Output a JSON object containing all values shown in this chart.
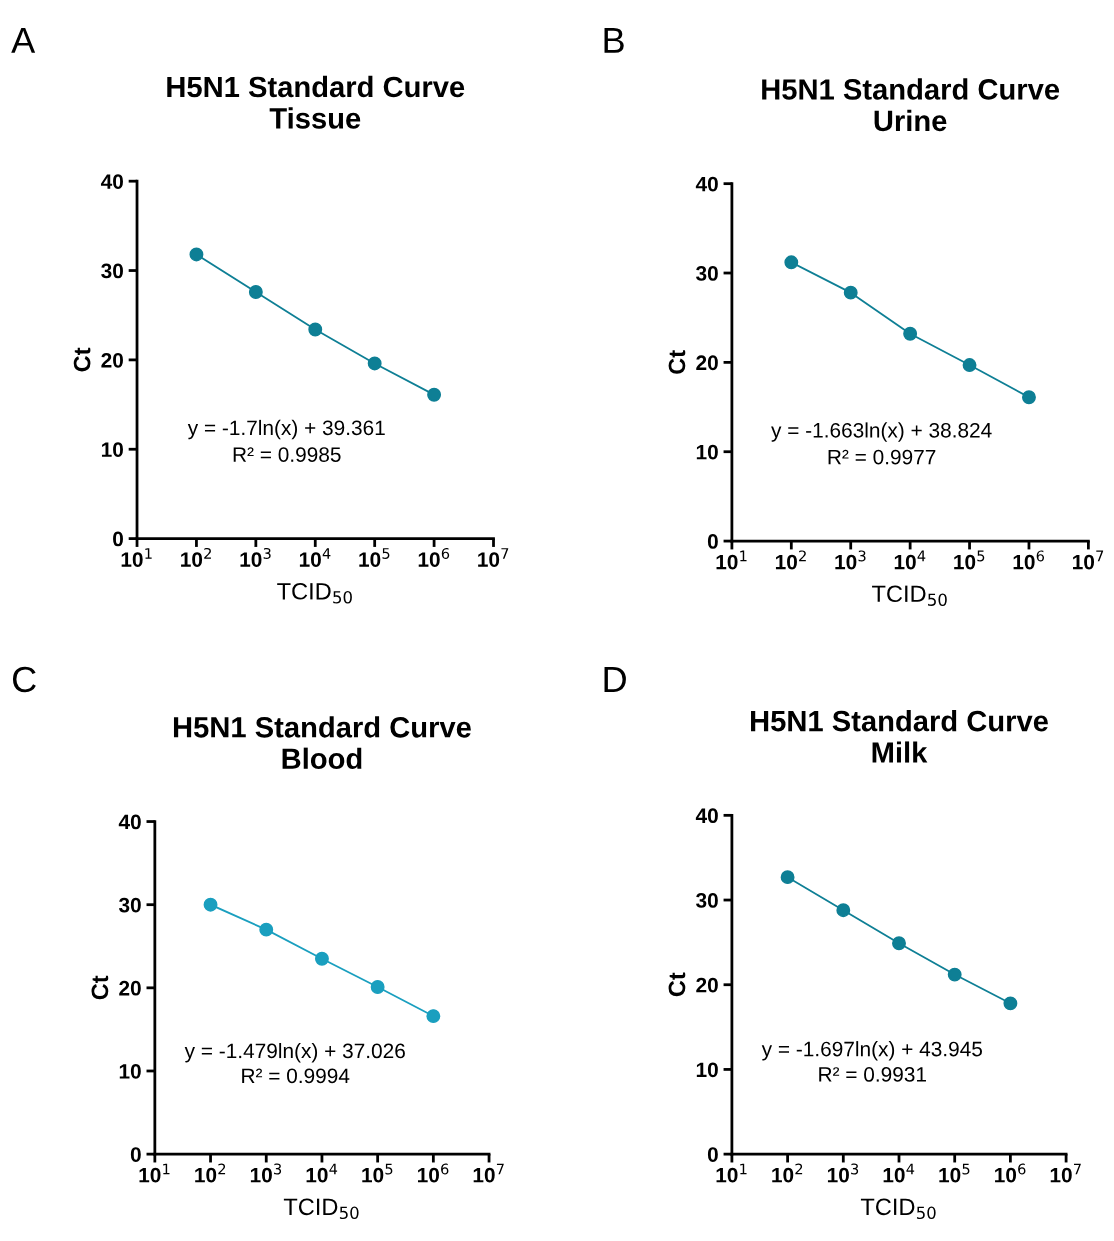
{
  "chart_data": [
    {
      "type": "line",
      "title": "H5N1 Standard Curve\nTissue",
      "xlabel": "TCID$_{50}$",
      "ylabel": "Ct",
      "x": [
        100,
        1000,
        10000,
        100000,
        1000000
      ],
      "series": [
        {
          "color": "#0e7f95",
          "values": [
            31.8,
            27.6,
            23.4,
            19.6,
            16.1
          ]
        }
      ],
      "log": "x",
      "xlim": [
        10,
        10000000
      ],
      "xticks": [
        {
          "value": 10,
          "label": "10$^{1}$"
        },
        {
          "value": 100,
          "label": "10$^{2}$"
        },
        {
          "value": 1000,
          "label": "10$^{3}$"
        },
        {
          "value": 10000,
          "label": "10$^{4}$"
        },
        {
          "value": 100000,
          "label": "10$^{5}$"
        },
        {
          "value": 1000000,
          "label": "10$^{6}$"
        },
        {
          "value": 10000000,
          "label": "10$^{7}$"
        }
      ],
      "ylim": [
        0,
        40
      ],
      "yticks": [
        0,
        10,
        20,
        30,
        40
      ],
      "grid": false,
      "legend": false,
      "marker": "circle",
      "line_style": "solid",
      "annotations": [
        "A",
        "y = -1.7ln(x) + 39.361",
        "R² = 0.9985"
      ]
    },
    {
      "type": "line",
      "title": "H5N1 Standard Curve\nUrine",
      "xlabel": "TCID$_{50}$",
      "ylabel": "Ct",
      "x": [
        100,
        1000,
        10000,
        100000,
        1000000
      ],
      "series": [
        {
          "color": "#0e7f95",
          "values": [
            31.2,
            27.8,
            23.2,
            19.7,
            16.1
          ]
        }
      ],
      "log": "x",
      "xlim": [
        10,
        10000000
      ],
      "xticks": [
        {
          "value": 10,
          "label": "10$^{1}$"
        },
        {
          "value": 100,
          "label": "10$^{2}$"
        },
        {
          "value": 1000,
          "label": "10$^{3}$"
        },
        {
          "value": 10000,
          "label": "10$^{4}$"
        },
        {
          "value": 100000,
          "label": "10$^{5}$"
        },
        {
          "value": 1000000,
          "label": "10$^{6}$"
        },
        {
          "value": 10000000,
          "label": "10$^{7}$"
        }
      ],
      "ylim": [
        0,
        40
      ],
      "yticks": [
        0,
        10,
        20,
        30,
        40
      ],
      "grid": false,
      "legend": false,
      "marker": "circle",
      "line_style": "solid",
      "annotations": [
        "B",
        "y = -1.663ln(x) + 38.824",
        "R² = 0.9977"
      ]
    },
    {
      "type": "line",
      "title": "H5N1 Standard Curve\nBlood",
      "xlabel": "TCID$_{50}$",
      "ylabel": "Ct",
      "x": [
        100,
        1000,
        10000,
        100000,
        1000000
      ],
      "series": [
        {
          "color": "#1a9fbf",
          "values": [
            30.0,
            27.0,
            23.5,
            20.1,
            16.6
          ]
        }
      ],
      "log": "x",
      "xlim": [
        10,
        10000000
      ],
      "xticks": [
        {
          "value": 10,
          "label": "10$^{1}$"
        },
        {
          "value": 100,
          "label": "10$^{2}$"
        },
        {
          "value": 1000,
          "label": "10$^{3}$"
        },
        {
          "value": 10000,
          "label": "10$^{4}$"
        },
        {
          "value": 100000,
          "label": "10$^{5}$"
        },
        {
          "value": 1000000,
          "label": "10$^{6}$"
        },
        {
          "value": 10000000,
          "label": "10$^{7}$"
        }
      ],
      "ylim": [
        0,
        40
      ],
      "yticks": [
        0,
        10,
        20,
        30,
        40
      ],
      "grid": false,
      "legend": false,
      "marker": "circle",
      "line_style": "solid",
      "annotations": [
        "C",
        "y = -1.479ln(x) + 37.026",
        "R² = 0.9994"
      ]
    },
    {
      "type": "line",
      "title": "H5N1 Standard Curve\nMilk",
      "xlabel": "TCID$_{50}$",
      "ylabel": "Ct",
      "x": [
        100,
        1000,
        10000,
        100000,
        1000000
      ],
      "series": [
        {
          "color": "#0e7f95",
          "values": [
            32.7,
            28.8,
            24.9,
            21.2,
            17.8
          ]
        }
      ],
      "log": "x",
      "xlim": [
        10,
        10000000
      ],
      "xticks": [
        {
          "value": 10,
          "label": "10$^{1}$"
        },
        {
          "value": 100,
          "label": "10$^{2}$"
        },
        {
          "value": 1000,
          "label": "10$^{3}$"
        },
        {
          "value": 10000,
          "label": "10$^{4}$"
        },
        {
          "value": 100000,
          "label": "10$^{5}$"
        },
        {
          "value": 1000000,
          "label": "10$^{6}$"
        },
        {
          "value": 10000000,
          "label": "10$^{7}$"
        }
      ],
      "ylim": [
        0,
        40
      ],
      "yticks": [
        0,
        10,
        20,
        30,
        40
      ],
      "grid": false,
      "legend": false,
      "marker": "circle",
      "line_style": "solid",
      "annotations": [
        "D",
        "y = -1.697ln(x) + 43.945",
        "R² = 0.9931"
      ]
    }
  ]
}
